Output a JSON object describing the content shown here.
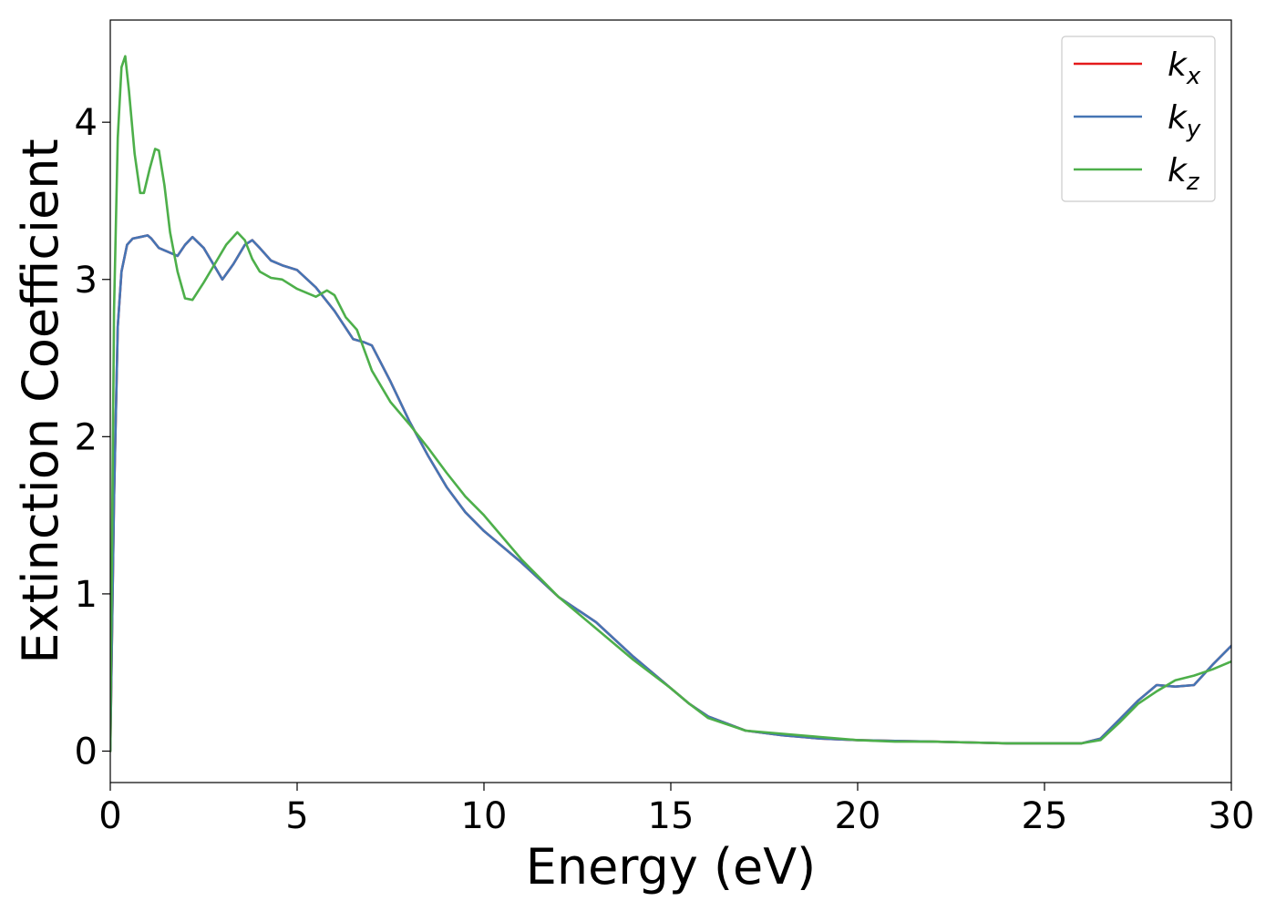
{
  "chart_data": {
    "type": "line",
    "title": "",
    "xlabel": "Energy (eV)",
    "ylabel": "Extinction Coefficient",
    "xlim": [
      0,
      30
    ],
    "ylim": [
      -0.2,
      4.65
    ],
    "xticks": [
      0,
      5,
      10,
      15,
      20,
      25,
      30
    ],
    "yticks": [
      0,
      1,
      2,
      3,
      4
    ],
    "grid": false,
    "legend_position": "top-right",
    "series": [
      {
        "name": "k_x",
        "label_base": "k",
        "label_sub": "x",
        "color": "#e41a1c",
        "x": [
          0,
          0.1,
          0.2,
          0.3,
          0.45,
          0.6,
          0.8,
          1.0,
          1.1,
          1.3,
          1.5,
          1.8,
          2.0,
          2.2,
          2.5,
          2.8,
          3.0,
          3.3,
          3.6,
          3.8,
          4.0,
          4.3,
          4.6,
          5.0,
          5.5,
          6.0,
          6.5,
          6.8,
          7.0,
          7.5,
          8.0,
          8.5,
          9.0,
          9.5,
          10.0,
          11.0,
          12.0,
          13.0,
          14.0,
          15.0,
          15.5,
          16.0,
          17.0,
          18.0,
          19.0,
          20.0,
          21.0,
          22.0,
          23.0,
          24.0,
          25.0,
          26.0,
          26.5,
          27.0,
          27.5,
          28.0,
          28.5,
          29.0,
          29.5,
          30.0
        ],
        "values": [
          0.0,
          1.6,
          2.7,
          3.05,
          3.22,
          3.26,
          3.27,
          3.28,
          3.26,
          3.2,
          3.18,
          3.15,
          3.22,
          3.27,
          3.2,
          3.08,
          3.0,
          3.1,
          3.22,
          3.25,
          3.2,
          3.12,
          3.09,
          3.06,
          2.95,
          2.8,
          2.62,
          2.6,
          2.58,
          2.35,
          2.1,
          1.88,
          1.68,
          1.52,
          1.4,
          1.2,
          0.98,
          0.82,
          0.6,
          0.4,
          0.3,
          0.22,
          0.13,
          0.1,
          0.08,
          0.07,
          0.065,
          0.06,
          0.055,
          0.05,
          0.05,
          0.05,
          0.08,
          0.2,
          0.32,
          0.42,
          0.41,
          0.42,
          0.55,
          0.67
        ]
      },
      {
        "name": "k_y",
        "label_base": "k",
        "label_sub": "y",
        "color": "#4575b4",
        "x": [
          0,
          0.1,
          0.2,
          0.3,
          0.45,
          0.6,
          0.8,
          1.0,
          1.1,
          1.3,
          1.5,
          1.8,
          2.0,
          2.2,
          2.5,
          2.8,
          3.0,
          3.3,
          3.6,
          3.8,
          4.0,
          4.3,
          4.6,
          5.0,
          5.5,
          6.0,
          6.5,
          6.8,
          7.0,
          7.5,
          8.0,
          8.5,
          9.0,
          9.5,
          10.0,
          11.0,
          12.0,
          13.0,
          14.0,
          15.0,
          15.5,
          16.0,
          17.0,
          18.0,
          19.0,
          20.0,
          21.0,
          22.0,
          23.0,
          24.0,
          25.0,
          26.0,
          26.5,
          27.0,
          27.5,
          28.0,
          28.5,
          29.0,
          29.5,
          30.0
        ],
        "values": [
          0.0,
          1.6,
          2.7,
          3.05,
          3.22,
          3.26,
          3.27,
          3.28,
          3.26,
          3.2,
          3.18,
          3.15,
          3.22,
          3.27,
          3.2,
          3.08,
          3.0,
          3.1,
          3.22,
          3.25,
          3.2,
          3.12,
          3.09,
          3.06,
          2.95,
          2.8,
          2.62,
          2.6,
          2.58,
          2.35,
          2.1,
          1.88,
          1.68,
          1.52,
          1.4,
          1.2,
          0.98,
          0.82,
          0.6,
          0.4,
          0.3,
          0.22,
          0.13,
          0.1,
          0.08,
          0.07,
          0.065,
          0.06,
          0.055,
          0.05,
          0.05,
          0.05,
          0.08,
          0.2,
          0.32,
          0.42,
          0.41,
          0.42,
          0.55,
          0.67
        ]
      },
      {
        "name": "k_z",
        "label_base": "k",
        "label_sub": "z",
        "color": "#4daf4a",
        "x": [
          0,
          0.1,
          0.2,
          0.3,
          0.4,
          0.5,
          0.65,
          0.8,
          0.9,
          1.05,
          1.2,
          1.3,
          1.45,
          1.6,
          1.8,
          2.0,
          2.2,
          2.5,
          2.8,
          3.1,
          3.4,
          3.6,
          3.8,
          4.0,
          4.3,
          4.6,
          5.0,
          5.5,
          5.8,
          6.0,
          6.3,
          6.6,
          7.0,
          7.5,
          8.0,
          8.5,
          9.0,
          9.5,
          10.0,
          11.0,
          12.0,
          13.0,
          14.0,
          15.0,
          15.5,
          16.0,
          17.0,
          18.0,
          19.0,
          20.0,
          21.0,
          22.0,
          23.0,
          24.0,
          25.0,
          26.0,
          26.5,
          27.0,
          27.5,
          28.0,
          28.5,
          29.0,
          29.5,
          30.0
        ],
        "values": [
          0.0,
          2.8,
          3.9,
          4.35,
          4.42,
          4.2,
          3.8,
          3.55,
          3.55,
          3.7,
          3.83,
          3.82,
          3.6,
          3.3,
          3.05,
          2.88,
          2.87,
          2.98,
          3.1,
          3.22,
          3.3,
          3.25,
          3.13,
          3.05,
          3.01,
          3.0,
          2.94,
          2.89,
          2.93,
          2.9,
          2.76,
          2.68,
          2.42,
          2.22,
          2.08,
          1.93,
          1.77,
          1.62,
          1.5,
          1.22,
          0.98,
          0.78,
          0.58,
          0.4,
          0.3,
          0.21,
          0.13,
          0.11,
          0.09,
          0.07,
          0.06,
          0.06,
          0.055,
          0.05,
          0.05,
          0.05,
          0.07,
          0.18,
          0.3,
          0.38,
          0.45,
          0.48,
          0.52,
          0.57
        ]
      }
    ]
  }
}
